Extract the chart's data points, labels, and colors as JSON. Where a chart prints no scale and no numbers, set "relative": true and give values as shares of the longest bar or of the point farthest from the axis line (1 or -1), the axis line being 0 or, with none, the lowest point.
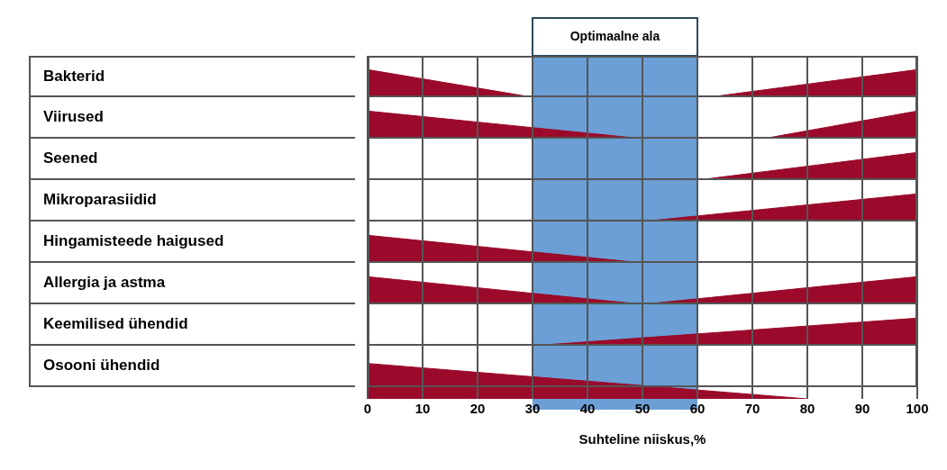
{
  "chart_data": [
    {
      "type": "area",
      "ylabel": "Bakterid",
      "relative": true,
      "xlim": [
        0,
        100
      ],
      "xticks": [
        0,
        10,
        20,
        30,
        40,
        50,
        60,
        70,
        80,
        90,
        100
      ],
      "tick_labels": false,
      "grid": "x",
      "bands": [
        {
          "axis": "x",
          "from": 30,
          "to": 60,
          "label": "Optimaalne ala",
          "color": "#6b9fd6"
        }
      ],
      "series": [
        {
          "color": "#9b0a2a",
          "x": [
            0,
            30,
            45,
            62,
            100
          ],
          "values": [
            1,
            0,
            null,
            0,
            1
          ]
        }
      ]
    },
    {
      "type": "area",
      "ylabel": "Viirused",
      "relative": true,
      "xlim": [
        0,
        100
      ],
      "xticks": [
        0,
        10,
        20,
        30,
        40,
        50,
        60,
        70,
        80,
        90,
        100
      ],
      "tick_labels": false,
      "grid": "x",
      "bands": [
        {
          "axis": "x",
          "from": 30,
          "to": 60,
          "color": "#6b9fd6"
        }
      ],
      "series": [
        {
          "color": "#9b0a2a",
          "x": [
            0,
            50,
            60,
            72,
            100
          ],
          "values": [
            1,
            0,
            null,
            0,
            1
          ]
        }
      ]
    },
    {
      "type": "area",
      "ylabel": "Seened",
      "relative": true,
      "xlim": [
        0,
        100
      ],
      "xticks": [
        0,
        10,
        20,
        30,
        40,
        50,
        60,
        70,
        80,
        90,
        100
      ],
      "tick_labels": false,
      "grid": "x",
      "bands": [
        {
          "axis": "x",
          "from": 30,
          "to": 60,
          "color": "#6b9fd6"
        }
      ],
      "series": [
        {
          "color": "#9b0a2a",
          "x": [
            60,
            100
          ],
          "values": [
            0,
            1
          ]
        }
      ]
    },
    {
      "type": "area",
      "ylabel": "Mikroparasiidid",
      "relative": true,
      "xlim": [
        0,
        100
      ],
      "xticks": [
        0,
        10,
        20,
        30,
        40,
        50,
        60,
        70,
        80,
        90,
        100
      ],
      "tick_labels": false,
      "grid": "x",
      "bands": [
        {
          "axis": "x",
          "from": 30,
          "to": 60,
          "color": "#6b9fd6"
        }
      ],
      "series": [
        {
          "color": "#9b0a2a",
          "x": [
            50,
            100
          ],
          "values": [
            0,
            1
          ]
        }
      ]
    },
    {
      "type": "area",
      "ylabel": "Hingamisteede haigused",
      "relative": true,
      "xlim": [
        0,
        100
      ],
      "xticks": [
        0,
        10,
        20,
        30,
        40,
        50,
        60,
        70,
        80,
        90,
        100
      ],
      "tick_labels": false,
      "grid": "x",
      "bands": [
        {
          "axis": "x",
          "from": 30,
          "to": 60,
          "color": "#6b9fd6"
        }
      ],
      "series": [
        {
          "color": "#9b0a2a",
          "x": [
            0,
            50
          ],
          "values": [
            1,
            0
          ]
        }
      ]
    },
    {
      "type": "area",
      "ylabel": "Allergia ja astma",
      "relative": true,
      "xlim": [
        0,
        100
      ],
      "xticks": [
        0,
        10,
        20,
        30,
        40,
        50,
        60,
        70,
        80,
        90,
        100
      ],
      "tick_labels": false,
      "grid": "x",
      "bands": [
        {
          "axis": "x",
          "from": 30,
          "to": 60,
          "color": "#6b9fd6"
        }
      ],
      "series": [
        {
          "color": "#9b0a2a",
          "x": [
            0,
            50,
            100
          ],
          "values": [
            1,
            0,
            1
          ]
        }
      ]
    },
    {
      "type": "area",
      "ylabel": "Keemilised ühendid",
      "relative": true,
      "xlim": [
        0,
        100
      ],
      "xticks": [
        0,
        10,
        20,
        30,
        40,
        50,
        60,
        70,
        80,
        90,
        100
      ],
      "tick_labels": false,
      "grid": "x",
      "bands": [
        {
          "axis": "x",
          "from": 30,
          "to": 60,
          "color": "#6b9fd6"
        }
      ],
      "series": [
        {
          "color": "#9b0a2a",
          "x": [
            30,
            100
          ],
          "values": [
            0,
            1
          ]
        }
      ]
    },
    {
      "type": "area",
      "ylabel": "Osooni ühendid",
      "xlabel": "Suhteline niiskus,%",
      "relative": true,
      "xlim": [
        0,
        100
      ],
      "xticks": [
        0,
        10,
        20,
        30,
        40,
        50,
        60,
        70,
        80,
        90,
        100
      ],
      "tick_labels": "x",
      "grid": "x",
      "bands": [
        {
          "axis": "x",
          "from": 30,
          "to": 60,
          "color": "#6b9fd6"
        }
      ],
      "series": [
        {
          "color": "#9b0a2a",
          "x": [
            0,
            80
          ],
          "values": [
            1,
            0
          ]
        }
      ]
    }
  ]
}
